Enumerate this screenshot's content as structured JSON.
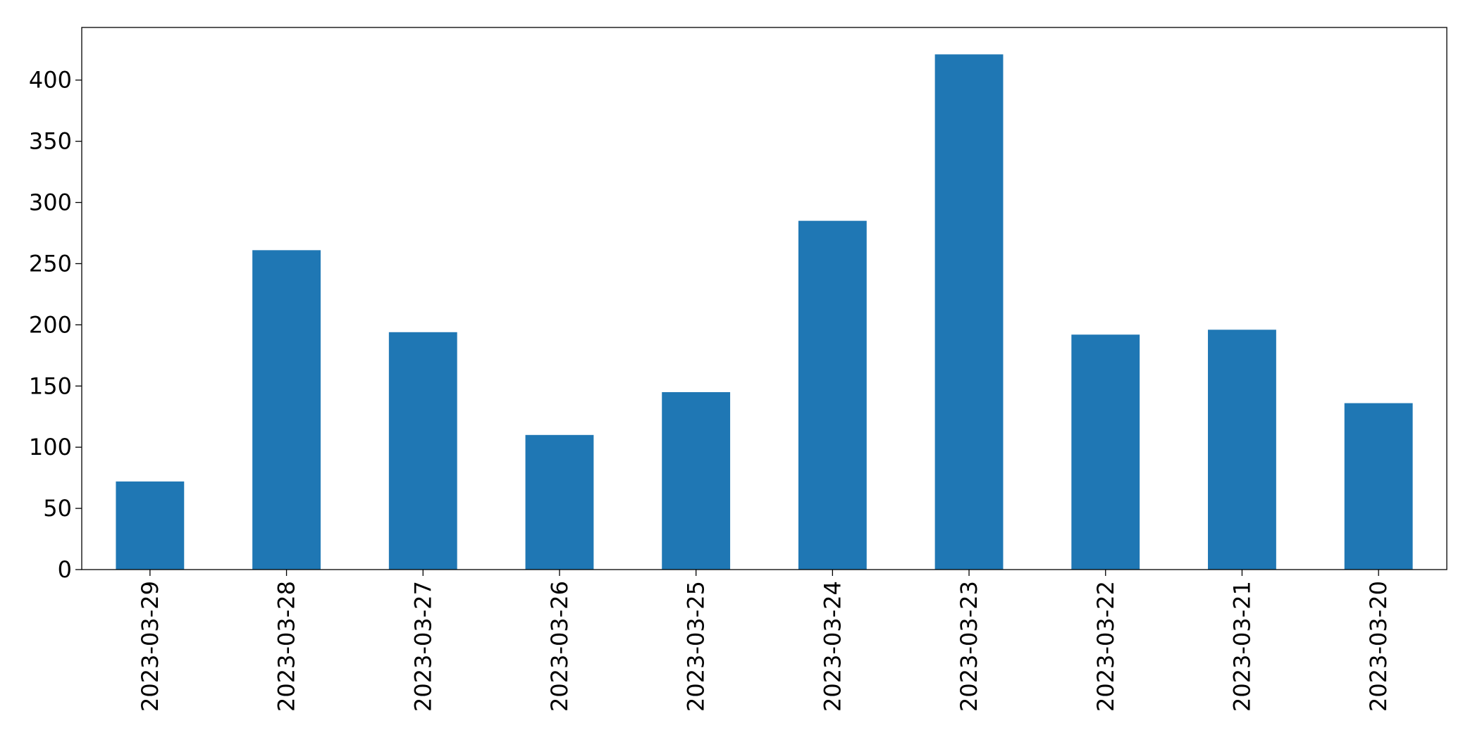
{
  "chart_data": {
    "type": "bar",
    "categories": [
      "2023-03-29",
      "2023-03-28",
      "2023-03-27",
      "2023-03-26",
      "2023-03-25",
      "2023-03-24",
      "2023-03-23",
      "2023-03-22",
      "2023-03-21",
      "2023-03-20"
    ],
    "values": [
      72,
      261,
      194,
      110,
      145,
      285,
      421,
      192,
      196,
      136
    ],
    "color": "#1f77b4",
    "ylim": [
      0,
      443
    ],
    "yticks": [
      0,
      50,
      100,
      150,
      200,
      250,
      300,
      350,
      400
    ],
    "grid": false
  }
}
